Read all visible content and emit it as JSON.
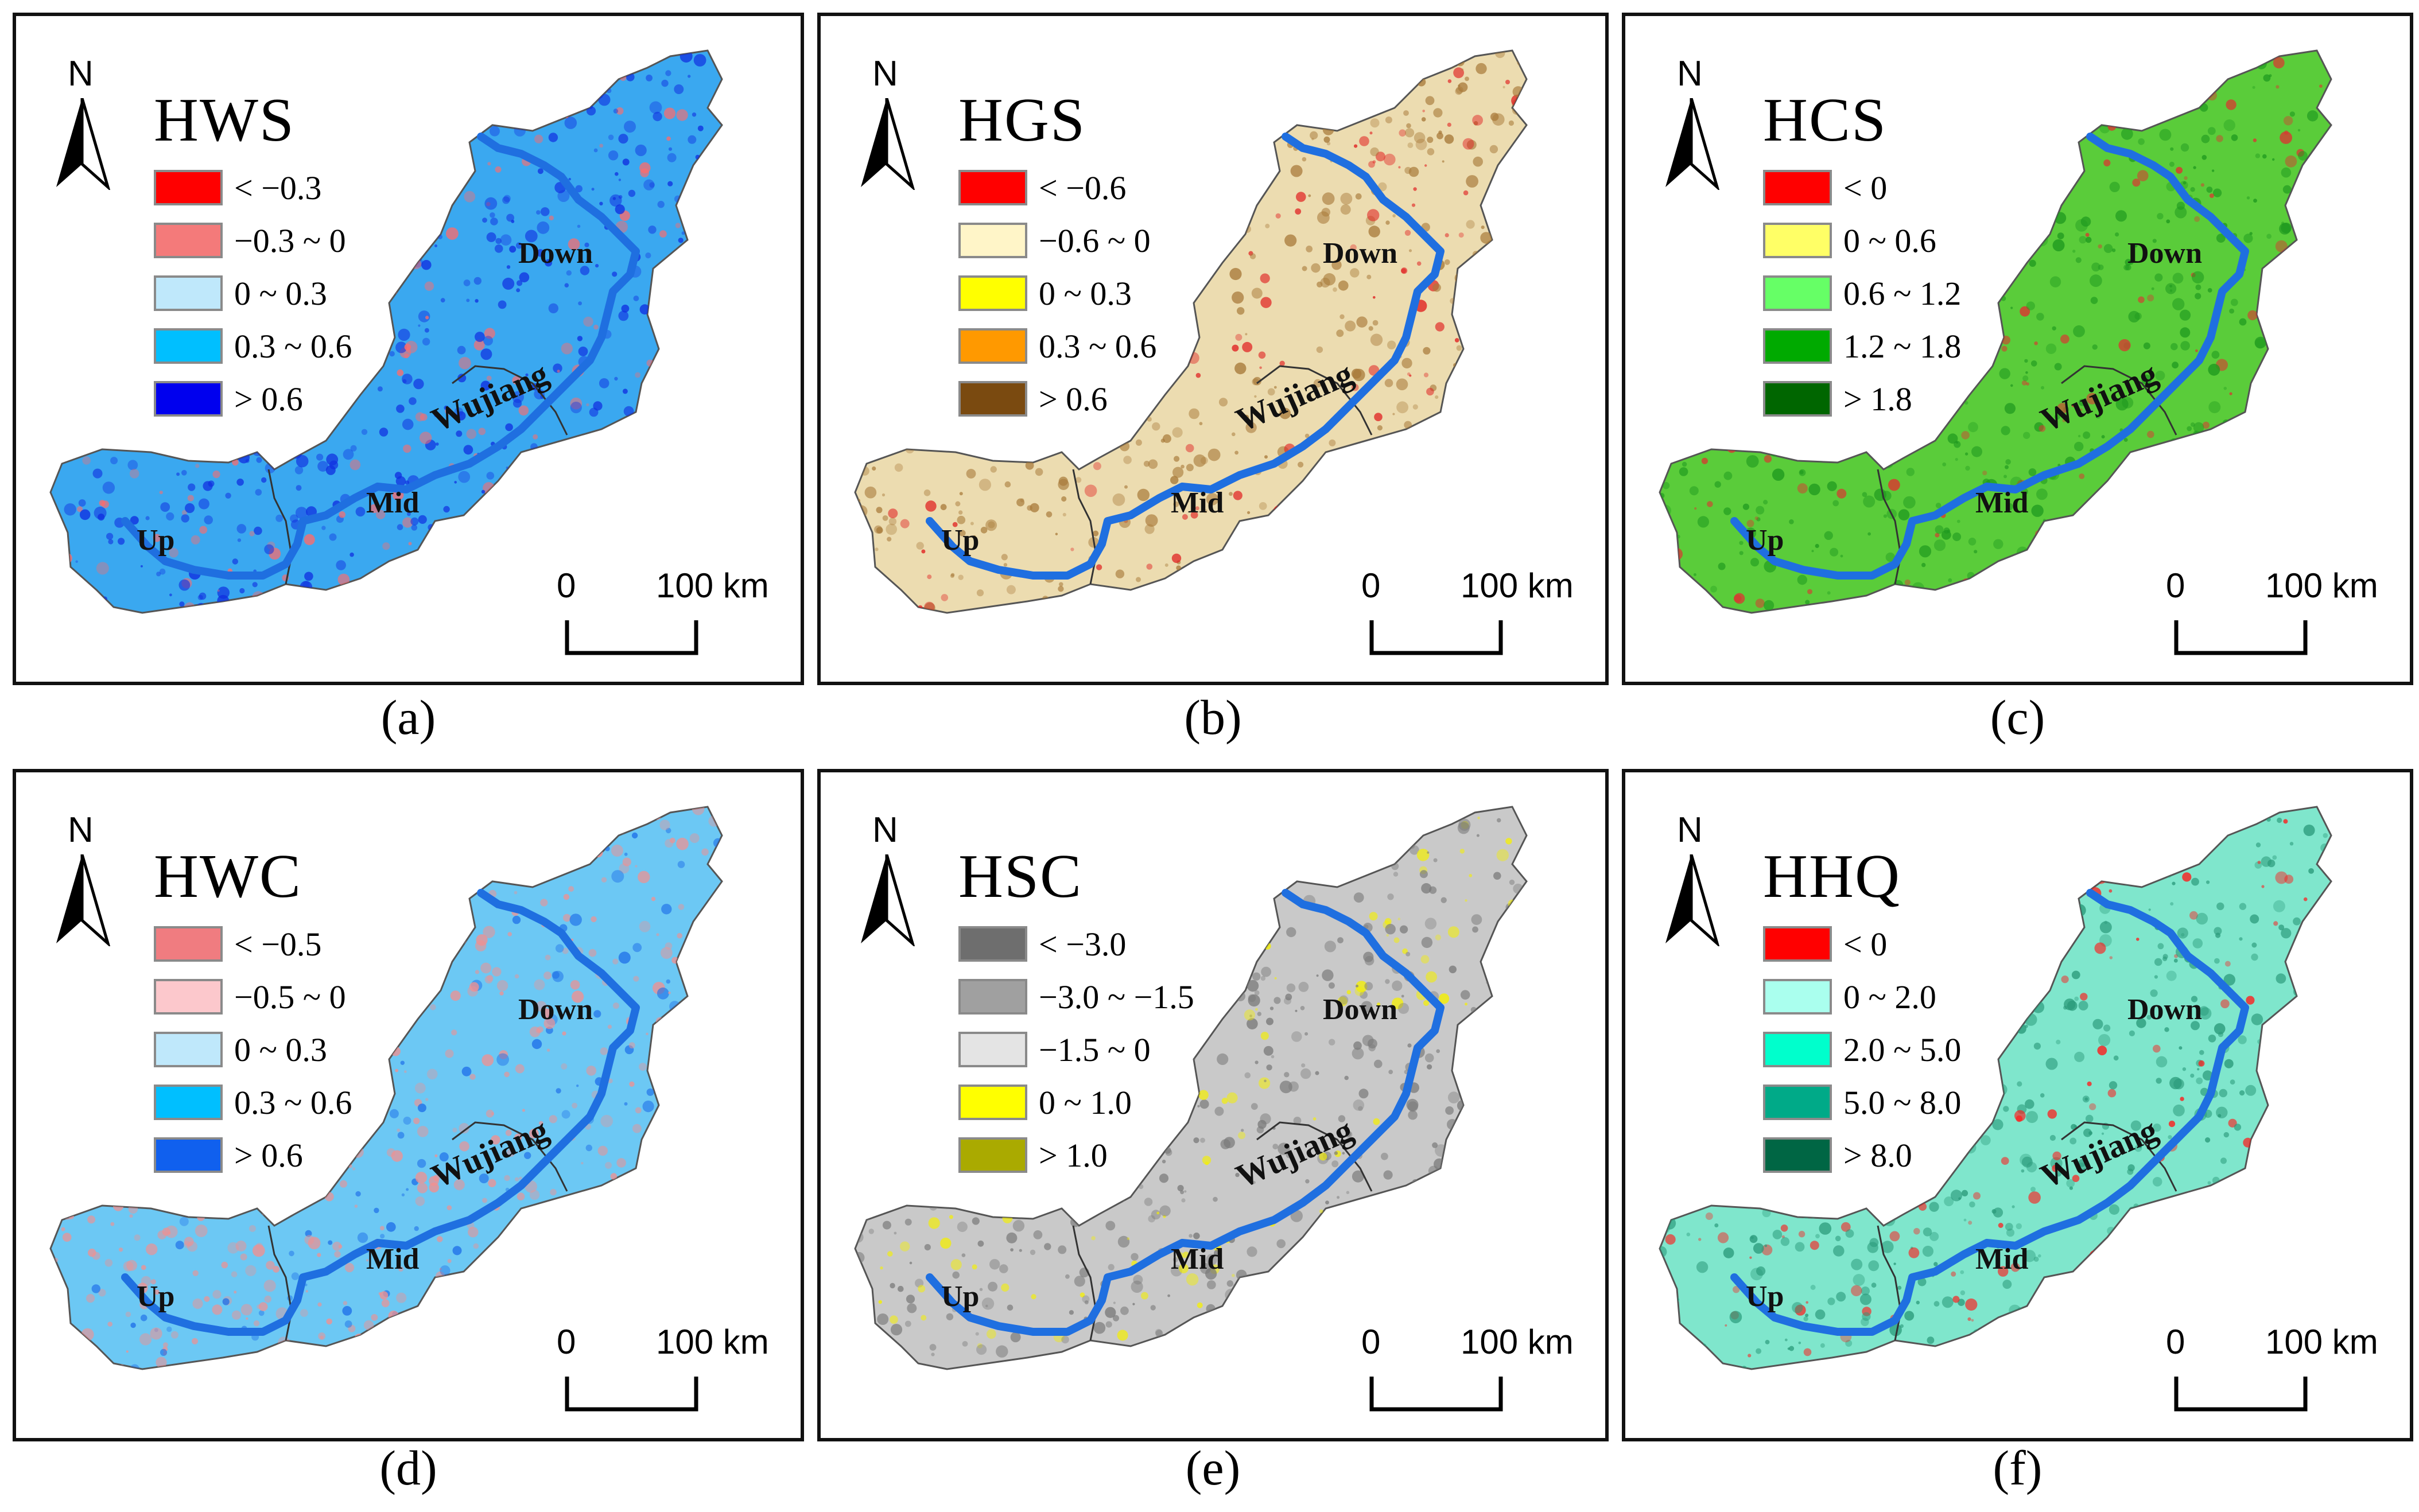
{
  "compass_label": "N",
  "scale": {
    "start": "0",
    "end": "100 km"
  },
  "place_names": {
    "up": "Up",
    "mid": "Mid",
    "down": "Down",
    "river": "Wujiang"
  },
  "river_color": "#1f6fe0",
  "panels": [
    {
      "id": "a",
      "title": "HWS",
      "caption": "(a)",
      "base_color": "#3aa8f0",
      "speckle_color": "#1030e0",
      "accent_color": "#ff6b6b",
      "legend": [
        {
          "label": "< −0.3",
          "color": "#ff0000"
        },
        {
          "label": "−0.3 ~ 0",
          "color": "#f47a7a"
        },
        {
          "label": "0 ~ 0.3",
          "color": "#bfe8fb"
        },
        {
          "label": "0.3 ~ 0.6",
          "color": "#00bfff"
        },
        {
          "label": "> 0.6",
          "color": "#0000ee"
        }
      ]
    },
    {
      "id": "b",
      "title": "HGS",
      "caption": "(b)",
      "base_color": "#ecdcb0",
      "speckle_color": "#a87a3a",
      "accent_color": "#e02020",
      "legend": [
        {
          "label": "< −0.6",
          "color": "#ff0000"
        },
        {
          "label": "−0.6 ~ 0",
          "color": "#fff5c8"
        },
        {
          "label": "0 ~ 0.3",
          "color": "#ffff00"
        },
        {
          "label": "0.3 ~ 0.6",
          "color": "#ff9900"
        },
        {
          "label": "> 0.6",
          "color": "#7a4a10"
        }
      ]
    },
    {
      "id": "c",
      "title": "HCS",
      "caption": "(c)",
      "base_color": "#5acc3a",
      "speckle_color": "#1f9a1f",
      "accent_color": "#e03030",
      "legend": [
        {
          "label": "< 0",
          "color": "#ff0000"
        },
        {
          "label": "0 ~ 0.6",
          "color": "#ffff66"
        },
        {
          "label": "0.6 ~ 1.2",
          "color": "#66ff66"
        },
        {
          "label": "1.2 ~ 1.8",
          "color": "#00aa00"
        },
        {
          "label": "> 1.8",
          "color": "#006600"
        }
      ]
    },
    {
      "id": "d",
      "title": "HWC",
      "caption": "(d)",
      "base_color": "#6cc8f4",
      "speckle_color": "#f19090",
      "accent_color": "#1e6fe8",
      "legend": [
        {
          "label": "< −0.5",
          "color": "#f07c80"
        },
        {
          "label": "−0.5 ~ 0",
          "color": "#fcc8cc"
        },
        {
          "label": "0 ~ 0.3",
          "color": "#bfe8fb"
        },
        {
          "label": "0.3 ~ 0.6",
          "color": "#00bfff"
        },
        {
          "label": "> 0.6",
          "color": "#1060ee"
        }
      ]
    },
    {
      "id": "e",
      "title": "HSC",
      "caption": "(e)",
      "base_color": "#c9c9c9",
      "speckle_color": "#7a7a7a",
      "accent_color": "#f5f000",
      "legend": [
        {
          "label": "< −3.0",
          "color": "#6e6e6e"
        },
        {
          "label": "−3.0 ~ −1.5",
          "color": "#a0a0a0"
        },
        {
          "label": "−1.5 ~ 0",
          "color": "#e4e4e4"
        },
        {
          "label": "0 ~ 1.0",
          "color": "#ffff00"
        },
        {
          "label": "> 1.0",
          "color": "#aaaa00"
        }
      ]
    },
    {
      "id": "f",
      "title": "HHQ",
      "caption": "(f)",
      "base_color": "#7fe6cc",
      "speckle_color": "#2a9a7a",
      "accent_color": "#ff1a1a",
      "legend": [
        {
          "label": "< 0",
          "color": "#ff0000"
        },
        {
          "label": "0 ~ 2.0",
          "color": "#aaffee"
        },
        {
          "label": "2.0 ~ 5.0",
          "color": "#00ffcc"
        },
        {
          "label": "5.0 ~ 8.0",
          "color": "#00aa88"
        },
        {
          "label": "> 8.0",
          "color": "#006644"
        }
      ]
    }
  ]
}
